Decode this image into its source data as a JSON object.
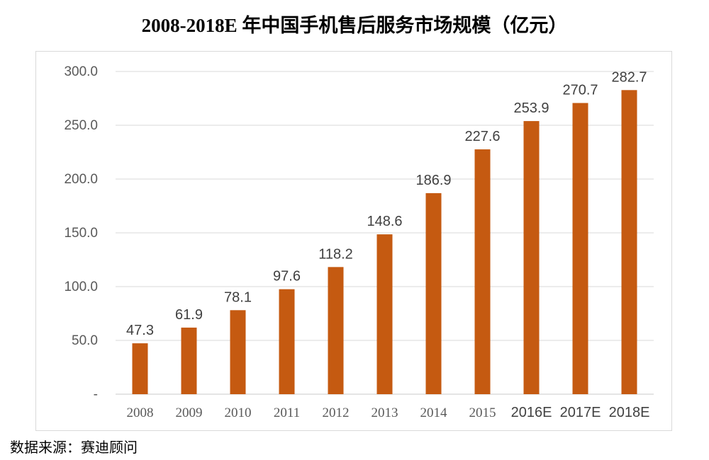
{
  "chart_data": {
    "type": "bar",
    "title": "2008-2018E 年中国手机售后服务市场规模（亿元）",
    "categories": [
      "2008",
      "2009",
      "2010",
      "2011",
      "2012",
      "2013",
      "2014",
      "2015",
      "2016E",
      "2017E",
      "2018E"
    ],
    "values": [
      47.3,
      61.9,
      78.1,
      97.6,
      118.2,
      148.6,
      186.9,
      227.6,
      253.9,
      270.7,
      282.7
    ],
    "value_labels": [
      "47.3",
      "61.9",
      "78.1",
      "97.6",
      "118.2",
      "148.6",
      "186.9",
      "227.6",
      "253.9",
      "270.7",
      "282.7"
    ],
    "y_tick_labels": [
      "-",
      "50.0",
      "100.0",
      "150.0",
      "200.0",
      "250.0",
      "300.0"
    ],
    "y_ticks": [
      0,
      50,
      100,
      150,
      200,
      250,
      300
    ],
    "ylim": [
      0,
      300
    ],
    "xlabel": "",
    "ylabel": "",
    "grid": true,
    "legend": "none",
    "bar_color": "#c55a11"
  },
  "source": "数据来源：赛迪顾问"
}
